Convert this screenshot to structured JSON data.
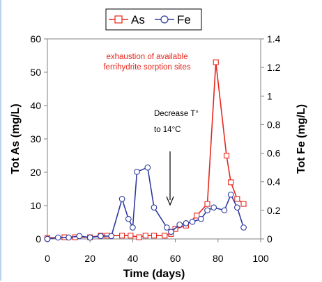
{
  "chart_data": {
    "type": "line",
    "title": "",
    "xlabel": "Time (days)",
    "ylabel": "Tot As (mg/L)",
    "y2label": "Tot Fe (mg/L)",
    "xlim": [
      0,
      100
    ],
    "ylim": [
      0,
      60
    ],
    "y2lim": [
      0,
      1.4
    ],
    "x_ticks": [
      "0",
      "20",
      "40",
      "60",
      "80",
      "100"
    ],
    "y_ticks": [
      "0",
      "10",
      "20",
      "30",
      "40",
      "50",
      "60"
    ],
    "y2_ticks": [
      "0",
      "0.2",
      "0.4",
      "0.6",
      "0.8",
      "1",
      "1.2",
      "1.4"
    ],
    "legend_position": "top-center",
    "grid": false,
    "series": [
      {
        "name": "As",
        "axis": "left",
        "color": "#e8261c",
        "marker": "square",
        "x": [
          0,
          8,
          13,
          20,
          25,
          28,
          35,
          39,
          43,
          46,
          50,
          55,
          58,
          60,
          65,
          70,
          75,
          79,
          84,
          86,
          89,
          92
        ],
        "y": [
          0.3,
          0.5,
          0.5,
          0.5,
          1,
          1,
          1,
          1,
          0.5,
          1,
          1,
          1,
          1.5,
          3,
          4,
          7,
          10.5,
          53,
          25,
          17,
          12,
          10.5
        ]
      },
      {
        "name": "Fe",
        "axis": "right",
        "color": "#2e3aa0",
        "marker": "circle",
        "x": [
          0,
          5,
          10,
          15,
          20,
          25,
          30,
          35,
          38,
          40,
          42,
          47,
          50,
          56,
          58,
          62,
          65,
          68,
          72,
          75,
          78,
          83,
          86,
          89,
          92
        ],
        "y": [
          0,
          0.01,
          0.01,
          0.02,
          0.01,
          0.02,
          0.02,
          0.28,
          0.14,
          0.08,
          0.47,
          0.5,
          0.22,
          0.08,
          0.05,
          0.1,
          0.11,
          0.12,
          0.14,
          0.2,
          0.22,
          0.2,
          0.31,
          0.22,
          0.08
        ]
      }
    ],
    "annotations": [
      {
        "lines": [
          "exhaustion of available",
          "ferrihydrite sorption sites"
        ],
        "color": "#e8261c"
      },
      {
        "lines": [
          "Decrease T°",
          "to 14°C"
        ],
        "color": "#000000"
      }
    ]
  }
}
